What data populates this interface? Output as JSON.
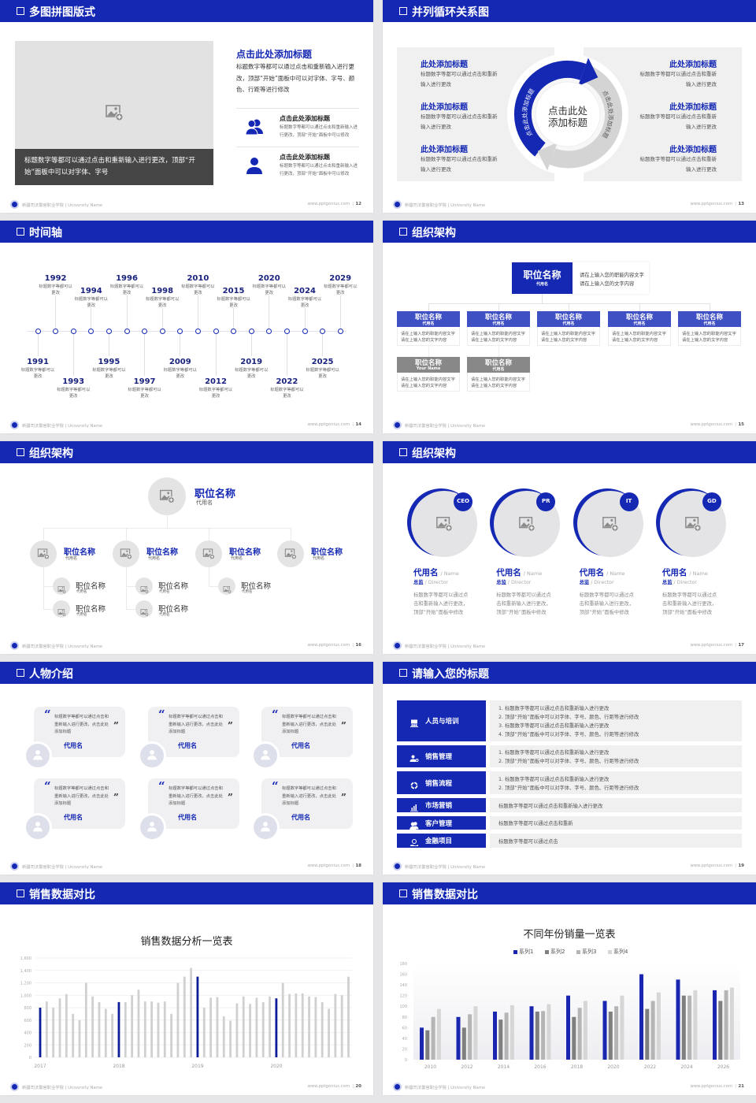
{
  "theme": {
    "primary": "#1428b4",
    "primary_light": "#3f4fc4",
    "gray_header": "#888888",
    "panel": "#f0f0f2"
  },
  "footer": {
    "school": "新疆司法警官职业学院 | University Name",
    "url": "www.pptgenius.com",
    "separator": "|"
  },
  "slides": [
    {
      "title": "多图拼图版式",
      "page": "12",
      "image_caption": "标题数字等都可以通过点击和重新输入进行更改，顶部“开始”面板中可以对字体、字号",
      "heading": "点击此处添加标题",
      "paragraph": "标题数字等都可以通过点击和重新输入进行更改，顶部“开始”面板中可以对字体、字号、颜色、行距等进行修改",
      "items": [
        {
          "icon": "users-icon",
          "title": "点击此处添加标题",
          "text": "标题数字等都可以通过点击和重新输入进行更改，顶部“开始”面板中可以修改"
        },
        {
          "icon": "user-icon",
          "title": "点击此处添加标题",
          "text": "标题数字等都可以通过点击和重新输入进行更改，顶部“开始”面板中可以修改"
        }
      ]
    },
    {
      "title": "并列循环关系图",
      "page": "13",
      "center_line1": "点击此处",
      "center_line2": "添加标题",
      "arc_left": "点击此处添加标题",
      "arc_right": "点击此处添加标题",
      "left_items": [
        {
          "title": "此处添加标题",
          "text": "标题数字等都可以通过点击和重新输入进行更改"
        },
        {
          "title": "此处添加标题",
          "text": "标题数字等都可以通过点击和重新输入进行更改"
        },
        {
          "title": "此处添加标题",
          "text": "标题数字等都可以通过点击和重新输入进行更改"
        }
      ],
      "right_items": [
        {
          "title": "此处添加标题",
          "text": "标题数字等都可以通过点击和重新输入进行更改"
        },
        {
          "title": "此处添加标题",
          "text": "标题数字等都可以通过点击和重新输入进行更改"
        },
        {
          "title": "此处添加标题",
          "text": "标题数字等都可以通过点击和重新输入进行更改"
        }
      ]
    },
    {
      "title": "时间轴",
      "page": "14",
      "events": [
        {
          "year": "1991",
          "text": "标题数字等都可以更改"
        },
        {
          "year": "1992",
          "text": "标题数字等都可以更改"
        },
        {
          "year": "1993",
          "text": "标题数字等都可以更改"
        },
        {
          "year": "1994",
          "text": "标题数字等都可以更改"
        },
        {
          "year": "1995",
          "text": "标题数字等都可以更改"
        },
        {
          "year": "1996",
          "text": "标题数字等都可以更改"
        },
        {
          "year": "1997",
          "text": "标题数字等都可以更改"
        },
        {
          "year": "1998",
          "text": "标题数字等都可以更改"
        },
        {
          "year": "2009",
          "text": "标题数字等都可以更改"
        },
        {
          "year": "2010",
          "text": "标题数字等都可以更改"
        },
        {
          "year": "2012",
          "text": "标题数字等都可以更改"
        },
        {
          "year": "2015",
          "text": "标题数字等都可以更改"
        },
        {
          "year": "2019",
          "text": "标题数字等都可以更改"
        },
        {
          "year": "2020",
          "text": "标题数字等都可以更改"
        },
        {
          "year": "2022",
          "text": "标题数字等都可以更改"
        },
        {
          "year": "2024",
          "text": "标题数字等都可以更改"
        },
        {
          "year": "2025",
          "text": "标题数字等都可以更改"
        },
        {
          "year": "2029",
          "text": "标题数字等都可以更改"
        }
      ]
    },
    {
      "title": "组织架构",
      "page": "15",
      "top": {
        "title": "职位名称",
        "sub": "代用名",
        "desc1": "请在上输入您的职能内容文字",
        "desc2": "请在上输入您的文字内容"
      },
      "boxes": [
        {
          "title": "职位名称",
          "sub": "代用名",
          "desc1": "请在上输入您的职能内容文字",
          "desc2": "请在上输入您的文字内容"
        },
        {
          "title": "职位名称",
          "sub": "代用名",
          "desc1": "请在上输入您的职能内容文字",
          "desc2": "请在上输入您的文字内容"
        },
        {
          "title": "职位名称",
          "sub": "代用名",
          "desc1": "请在上输入您的职能内容文字",
          "desc2": "请在上输入您的文字内容"
        },
        {
          "title": "职位名称",
          "sub": "代用名",
          "desc1": "请在上输入您的职能内容文字",
          "desc2": "请在上输入您的文字内容"
        },
        {
          "title": "职位名称",
          "sub": "代用名",
          "desc1": "请在上输入您的职能内容文字",
          "desc2": "请在上输入您的文字内容"
        },
        {
          "title": "职位名称",
          "sub": "Your Name",
          "desc1": "请在上输入您的职能内容文字",
          "desc2": "请在上输入您的文字内容"
        },
        {
          "title": "职位名称",
          "sub": "代用名",
          "desc1": "请在上输入您的职能内容文字",
          "desc2": "请在上输入您的文字内容"
        }
      ]
    },
    {
      "title": "组织架构",
      "page": "16",
      "top": {
        "title": "职位名称",
        "sub": "代用名"
      },
      "level2": [
        {
          "title": "职位名称",
          "sub": "代用名",
          "children": [
            {
              "title": "职位名称",
              "sub": "代用名"
            },
            {
              "title": "职位名称",
              "sub": "代用名"
            }
          ]
        },
        {
          "title": "职位名称",
          "sub": "代用名",
          "children": [
            {
              "title": "职位名称",
              "sub": "代用名"
            },
            {
              "title": "职位名称",
              "sub": "代用名"
            }
          ]
        },
        {
          "title": "职位名称",
          "sub": "代用名",
          "children": [
            {
              "title": "职位名称",
              "sub": "代用名"
            }
          ]
        },
        {
          "title": "职位名称",
          "sub": "代用名",
          "children": []
        }
      ]
    },
    {
      "title": "组织架构",
      "page": "17",
      "members": [
        {
          "badge": "CEO",
          "name": "代用名",
          "name_en": "/ Name",
          "role": "总监",
          "role_en": "/  Director",
          "text": "标题数字等都可以通过点击和重新输入进行更改，顶部“开始”面板中修改"
        },
        {
          "badge": "PR",
          "name": "代用名",
          "name_en": "/ Name",
          "role": "总监",
          "role_en": "/  Director",
          "text": "标题数字等都可以通过点击和重新输入进行更改，顶部“开始”面板中修改"
        },
        {
          "badge": "IT",
          "name": "代用名",
          "name_en": "/ Name",
          "role": "总监",
          "role_en": "/  Director",
          "text": "标题数字等都可以通过点击和重新输入进行更改，顶部“开始”面板中修改"
        },
        {
          "badge": "GD",
          "name": "代用名",
          "name_en": "/ Name",
          "role": "总监",
          "role_en": "/  Director",
          "text": "标题数字等都可以通过点击和重新输入进行更改，顶部“开始”面板中修改"
        }
      ]
    },
    {
      "title": "人物介绍",
      "page": "18",
      "cards": [
        {
          "quote": "标题数字等都可以通过点击和重新输入进行更改，点击此处添加标题",
          "name": "代用名"
        },
        {
          "quote": "标题数字等都可以通过点击和重新输入进行更改，点击此处添加标题",
          "name": "代用名"
        },
        {
          "quote": "标题数字等都可以通过点击和重新输入进行更改，点击此处添加标题",
          "name": "代用名"
        },
        {
          "quote": "标题数字等都可以通过点击和重新输入进行更改，点击此处添加标题",
          "name": "代用名"
        },
        {
          "quote": "标题数字等都可以通过点击和重新输入进行更改，点击此处添加标题",
          "name": "代用名"
        },
        {
          "quote": "标题数字等都可以通过点击和重新输入进行更改，点击此处添加标题",
          "name": "代用名"
        }
      ]
    },
    {
      "title": "请输入您的标题",
      "page": "19",
      "rows": [
        {
          "icon": "training-icon",
          "label": "人员与培训",
          "lines": [
            "1.   标题数字等都可以通过点击和重新输入进行更改",
            "2.   顶部“开始”面板中可以对字体、字号、颜色、行距等进行修改",
            "3.   标题数字等都可以通过点击和重新输入进行更改",
            "4.   顶部“开始”面板中可以对字体、字号、颜色、行距等进行修改"
          ]
        },
        {
          "icon": "user-gear-icon",
          "label": "销售管理",
          "lines": [
            "1.   标题数字等都可以通过点击和重新输入进行更改",
            "2.   顶部“开始”面板中可以对字体、字号、颜色、行距等进行修改"
          ]
        },
        {
          "icon": "cycle-icon",
          "label": "销售流程",
          "lines": [
            "1.   标题数字等都可以通过点击和重新输入进行更改",
            "2.   顶部“开始”面板中可以对字体、字号、颜色、行距等进行修改"
          ]
        },
        {
          "icon": "bar-chart-icon",
          "label": "市场营销",
          "lines": [
            "标题数字等都可以通过点击和重新输入进行更改"
          ]
        },
        {
          "icon": "group-icon",
          "label": "客户管理",
          "lines": [
            "标题数字等都可以通过点击和重新"
          ]
        },
        {
          "icon": "money-hand-icon",
          "label": "金融项目",
          "lines": [
            "标题数字等都可以通过点击"
          ]
        }
      ]
    },
    {
      "title": "销售数据对比",
      "page": "20"
    },
    {
      "title": "销售数据对比",
      "page": "21"
    }
  ],
  "chart_data": [
    {
      "type": "bar",
      "title": "销售数据分析一览表",
      "x_tick_labels": [
        "2017",
        "2018",
        "2019",
        "2020"
      ],
      "values": [
        800,
        900,
        800,
        950,
        1020,
        700,
        600,
        1200,
        980,
        890,
        780,
        700,
        890,
        890,
        1000,
        1090,
        900,
        900,
        880,
        900,
        700,
        1200,
        1300,
        1440,
        1300,
        800,
        960,
        970,
        660,
        590,
        870,
        980,
        860,
        960,
        890,
        980,
        950,
        1200,
        1020,
        1030,
        1030,
        980,
        970,
        890,
        780,
        1020,
        1000,
        1300
      ],
      "highlighted_indices": [
        0,
        12,
        24,
        36
      ],
      "bar_color": "#d0d0d0",
      "highlight_color": "#0c1c9a",
      "ylim": [
        0,
        1600
      ],
      "ytick_labels": [
        "0",
        "200",
        "400",
        "600",
        "800",
        "1,000",
        "1,200",
        "1,400",
        "1,600"
      ],
      "grid": true
    },
    {
      "type": "bar",
      "title": "不同年份销量一览表",
      "categories": [
        "2010",
        "2012",
        "2014",
        "2016",
        "2018",
        "2020",
        "2022",
        "2024",
        "2026"
      ],
      "series": [
        {
          "name": "系列1",
          "color": "#1a26b0",
          "values": [
            60,
            80,
            90,
            100,
            120,
            110,
            160,
            150,
            130
          ]
        },
        {
          "name": "系列2",
          "color": "#7f7f7f",
          "values": [
            55,
            60,
            75,
            90,
            80,
            90,
            95,
            120,
            110
          ]
        },
        {
          "name": "系列3",
          "color": "#b5b5b5",
          "values": [
            80,
            85,
            88,
            91,
            97,
            100,
            110,
            120,
            130
          ]
        },
        {
          "name": "系列4",
          "color": "#d6d6d6",
          "values": [
            95,
            100,
            102,
            104,
            110,
            120,
            126,
            130,
            135
          ]
        }
      ],
      "ylim": [
        0,
        180
      ],
      "ytick_labels": [
        "0",
        "20",
        "40",
        "60",
        "80",
        "100",
        "120",
        "140",
        "160",
        "180"
      ],
      "legend": "top"
    }
  ]
}
